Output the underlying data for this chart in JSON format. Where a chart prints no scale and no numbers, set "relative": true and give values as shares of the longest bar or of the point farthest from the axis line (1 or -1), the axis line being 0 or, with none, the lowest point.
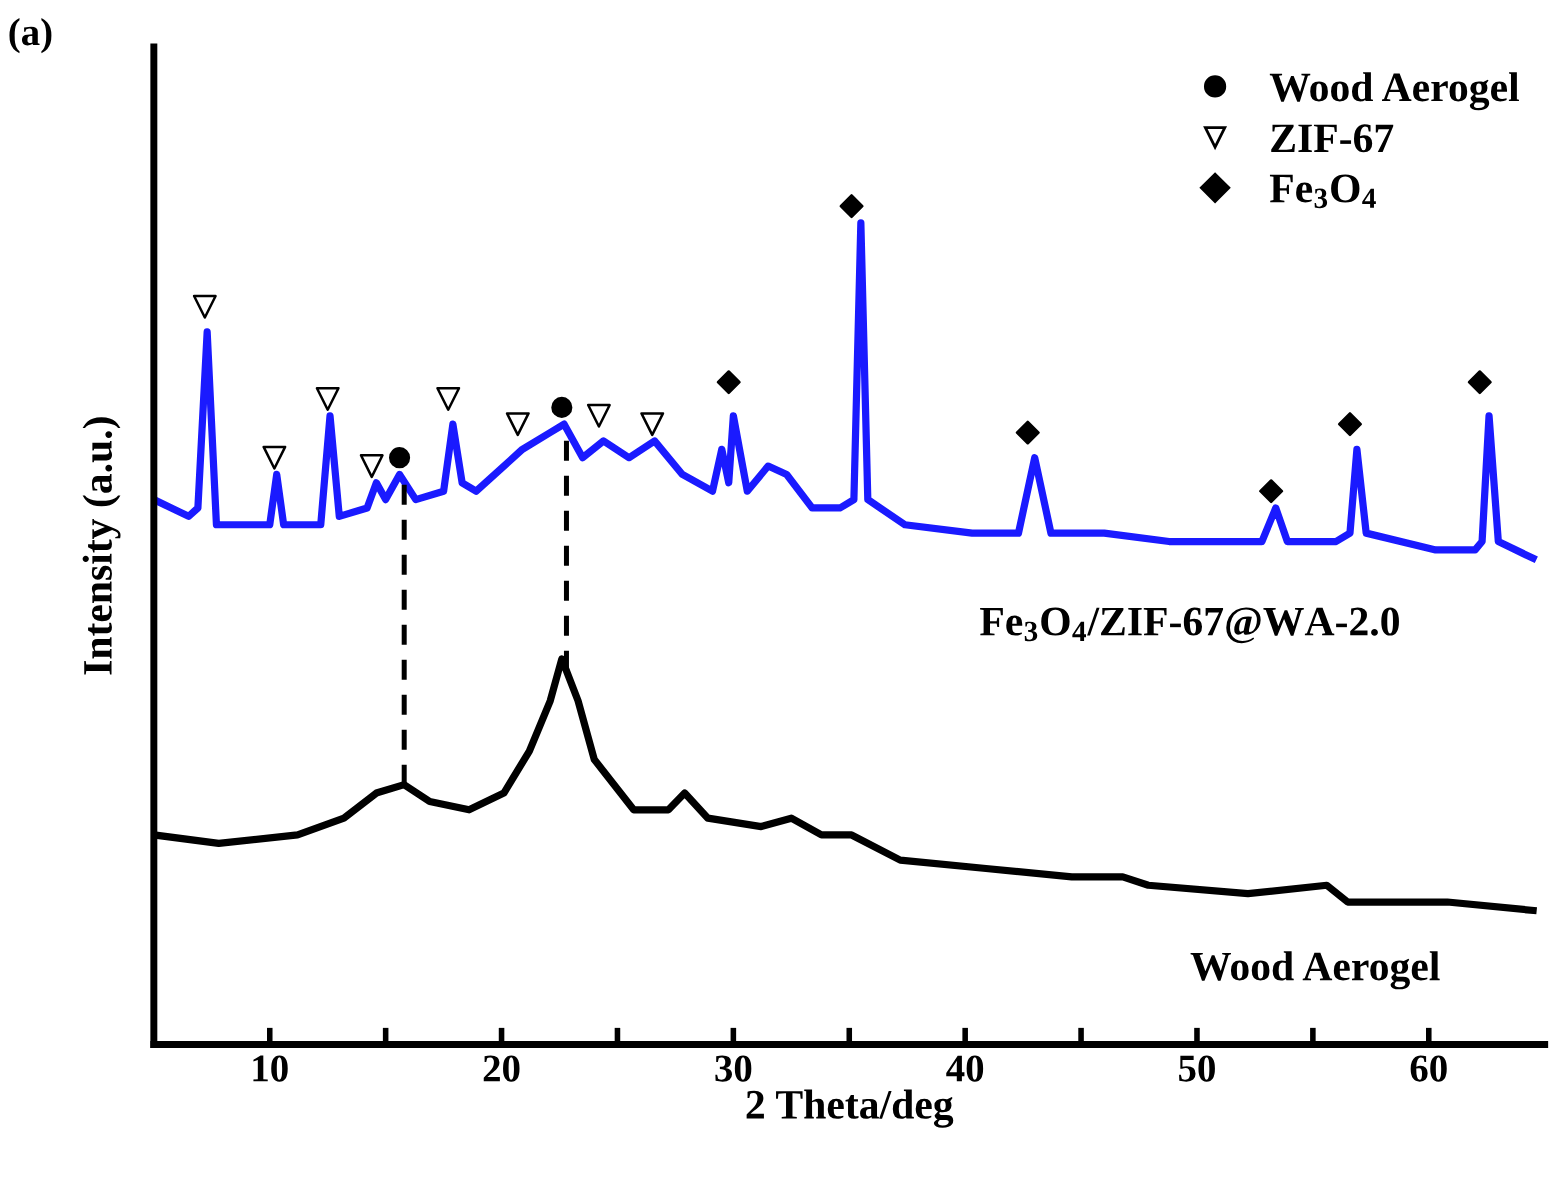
{
  "chart_data": {
    "type": "line",
    "title": "(a)",
    "xlabel": "2 Theta/deg",
    "ylabel": "Intensity (a.u.)",
    "relative": true,
    "xlim": [
      5,
      65
    ],
    "xticks": [
      10,
      {
        "value": 15,
        "label": null
      },
      20,
      {
        "value": 25,
        "label": null
      },
      30,
      {
        "value": 35,
        "label": null
      },
      40,
      {
        "value": 45,
        "label": null
      },
      50,
      {
        "value": 55,
        "label": null
      },
      60
    ],
    "grid": false,
    "legend": "top right",
    "marker": "none",
    "line_style": "solid",
    "series": [
      {
        "name": "Fe$_{3}$O$_{4}$/ZIF-67@WA-2.0",
        "color": "#1a1aff",
        "x": [
          5.0,
          6.5,
          6.9,
          7.3,
          7.7,
          9.0,
          10.0,
          10.3,
          10.6,
          12.2,
          12.6,
          13.0,
          14.2,
          14.6,
          15.0,
          15.6,
          16.3,
          17.5,
          17.9,
          18.3,
          18.9,
          20.9,
          22.1,
          22.7,
          23.5,
          24.4,
          25.5,
          26.6,
          27.8,
          29.1,
          29.5,
          29.8,
          30.0,
          30.6,
          31.5,
          32.3,
          33.4,
          34.6,
          35.2,
          35.5,
          35.8,
          37.4,
          40.3,
          42.3,
          43.0,
          43.7,
          46.0,
          48.8,
          51.7,
          52.8,
          53.4,
          53.9,
          56.0,
          56.6,
          56.9,
          57.3,
          60.3,
          62.0,
          62.3,
          62.6,
          63.0,
          64.5
        ],
        "values": [
          0.65,
          0.63,
          0.64,
          0.85,
          0.62,
          0.62,
          0.62,
          0.68,
          0.62,
          0.62,
          0.75,
          0.63,
          0.64,
          0.67,
          0.65,
          0.68,
          0.65,
          0.66,
          0.74,
          0.67,
          0.66,
          0.71,
          0.73,
          0.74,
          0.7,
          0.72,
          0.7,
          0.72,
          0.68,
          0.66,
          0.71,
          0.67,
          0.75,
          0.66,
          0.69,
          0.68,
          0.64,
          0.64,
          0.65,
          0.98,
          0.65,
          0.62,
          0.61,
          0.61,
          0.7,
          0.61,
          0.61,
          0.6,
          0.6,
          0.6,
          0.64,
          0.6,
          0.6,
          0.61,
          0.71,
          0.61,
          0.59,
          0.59,
          0.6,
          0.75,
          0.6,
          0.58
        ]
      },
      {
        "name": "Wood Aerogel",
        "color": "#000000",
        "x": [
          5.0,
          7.8,
          11.2,
          13.2,
          14.6,
          15.8,
          16.9,
          18.6,
          20.1,
          21.2,
          22.1,
          22.6,
          23.3,
          24.0,
          25.7,
          27.2,
          27.9,
          28.9,
          31.2,
          32.5,
          33.8,
          35.1,
          37.2,
          40.9,
          44.6,
          46.8,
          47.9,
          52.2,
          55.6,
          56.5,
          60.8,
          64.5
        ],
        "values": [
          0.25,
          0.24,
          0.25,
          0.27,
          0.3,
          0.31,
          0.29,
          0.28,
          0.3,
          0.35,
          0.41,
          0.46,
          0.41,
          0.34,
          0.28,
          0.28,
          0.3,
          0.27,
          0.26,
          0.27,
          0.25,
          0.25,
          0.22,
          0.21,
          0.2,
          0.2,
          0.19,
          0.18,
          0.19,
          0.17,
          0.17,
          0.16
        ]
      },
      {
        "type": "scatter",
        "name": "Wood Aerogel",
        "color": "#000000",
        "marker": "circle",
        "x": [
          15.6,
          22.6
        ],
        "values": [
          0.7,
          0.76
        ]
      },
      {
        "type": "scatter",
        "name": "ZIF-67",
        "color": "#000000",
        "marker": "triangle",
        "x": [
          7.2,
          10.2,
          12.5,
          14.4,
          17.7,
          20.7,
          24.2,
          26.5
        ],
        "values": [
          0.88,
          0.7,
          0.77,
          0.69,
          0.77,
          0.74,
          0.75,
          0.74
        ]
      },
      {
        "type": "scatter",
        "name": "Fe$_{3}$O$_{4}$",
        "color": "#000000",
        "marker": "diamond",
        "x": [
          29.8,
          35.1,
          42.7,
          53.2,
          56.6,
          62.2
        ],
        "values": [
          0.79,
          1.0,
          0.73,
          0.66,
          0.74,
          0.79
        ]
      }
    ],
    "ref_lines": [
      {
        "axis": "x",
        "value": 15.8,
        "line_style": "dashed",
        "color": "#000000"
      },
      {
        "axis": "x",
        "value": 22.8,
        "line_style": "dashed",
        "color": "#000000"
      }
    ]
  }
}
